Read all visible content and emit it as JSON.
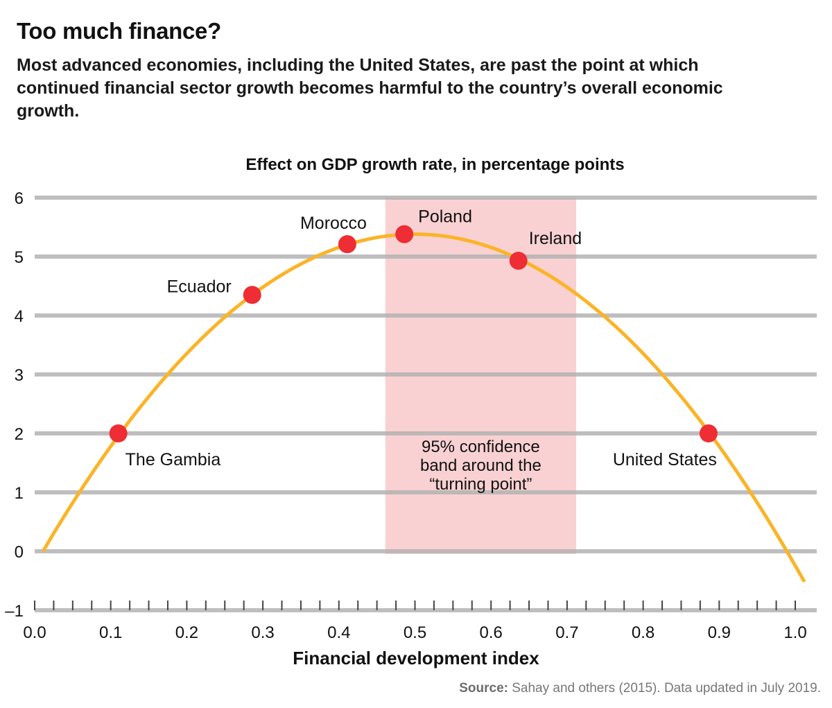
{
  "header": {
    "title": "Too much finance?",
    "subtitle": "Most advanced economies, including the United States, are past the point at which continued financial sector growth becomes harmful to the country’s overall economic growth."
  },
  "footer": {
    "source_label": "Source:",
    "source_text": " Sahay and others (2015). Data updated in July 2019."
  },
  "colors": {
    "curve": "#FBB427",
    "points": "#EE2D34",
    "band": "#F6B4B7",
    "gridline": "#B3B3B3"
  },
  "chart_data": {
    "type": "line",
    "title": "Effect on GDP growth rate, in percentage points",
    "xlabel": "Financial development index",
    "ylabel": "",
    "xlim": [
      0.0,
      1.0
    ],
    "ylim": [
      -1,
      6
    ],
    "grid": true,
    "x_ticks": [
      "0.0",
      "0.1",
      "0.2",
      "0.3",
      "0.4",
      "0.5",
      "0.6",
      "0.7",
      "0.8",
      "0.9",
      "1.0"
    ],
    "x_tick_values": [
      0.0,
      0.1,
      0.2,
      0.3,
      0.4,
      0.5,
      0.6,
      0.7,
      0.8,
      0.9,
      1.0
    ],
    "x_minor_tick_step": 0.025,
    "y_ticks": [
      "6",
      "5",
      "4",
      "3",
      "2",
      "1",
      "0",
      "–1"
    ],
    "y_tick_values": [
      6,
      5,
      4,
      3,
      2,
      1,
      0,
      -1
    ],
    "curve": {
      "name": "Effect on GDP growth",
      "form": "quadratic",
      "x": [
        0.011,
        0.05,
        0.1,
        0.15,
        0.2,
        0.25,
        0.3,
        0.35,
        0.4,
        0.45,
        0.5,
        0.55,
        0.6,
        0.65,
        0.7,
        0.75,
        0.8,
        0.85,
        0.9,
        0.95,
        1.0,
        1.012
      ],
      "y": [
        0.0,
        0.82,
        1.78,
        2.62,
        3.36,
        3.97,
        4.48,
        4.87,
        5.16,
        5.32,
        5.38,
        5.32,
        5.16,
        4.87,
        4.48,
        3.97,
        3.36,
        2.62,
        1.78,
        0.82,
        -0.25,
        -0.52
      ]
    },
    "points": [
      {
        "label": "The Gambia",
        "x": 0.11,
        "y": 2.0
      },
      {
        "label": "Ecuador",
        "x": 0.286,
        "y": 4.35
      },
      {
        "label": "Morocco",
        "x": 0.411,
        "y": 5.21
      },
      {
        "label": "Poland",
        "x": 0.486,
        "y": 5.38
      },
      {
        "label": "Ireland",
        "x": 0.636,
        "y": 4.93
      },
      {
        "label": "United States",
        "x": 0.886,
        "y": 2.0
      }
    ],
    "band": {
      "x_start": 0.461,
      "x_end": 0.712,
      "y_start": 0,
      "y_end": 6,
      "label_lines": [
        "95% confidence",
        "band around the",
        "“turning point”"
      ]
    }
  }
}
